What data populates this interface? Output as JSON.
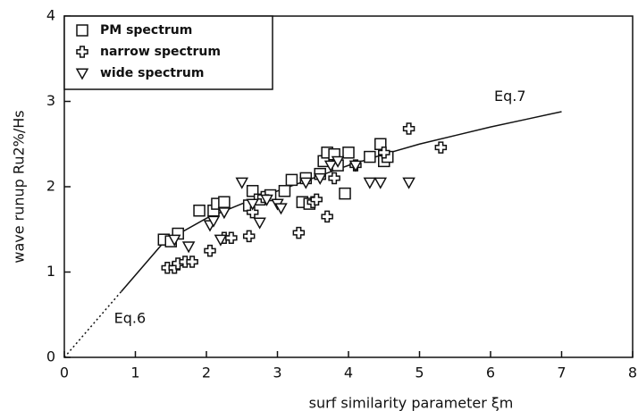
{
  "chart_data": {
    "type": "scatter",
    "xlabel": "surf similarity parameter ξm",
    "ylabel": "wave runup Ru2%/Hs",
    "xlim": [
      0,
      8
    ],
    "ylim": [
      0,
      4
    ],
    "xticks": [
      0,
      1,
      2,
      3,
      4,
      5,
      6,
      7,
      8
    ],
    "yticks": [
      0,
      1,
      2,
      3,
      4
    ],
    "legend": "upper left",
    "color": "#111111",
    "series": [
      {
        "name": "PM spectrum",
        "marker": "square",
        "x": [
          1.4,
          1.5,
          1.6,
          1.9,
          2.1,
          2.15,
          2.25,
          2.6,
          2.65,
          2.75,
          2.9,
          3.1,
          3.2,
          3.35,
          3.4,
          3.45,
          3.6,
          3.65,
          3.7,
          3.8,
          3.85,
          3.95,
          4.0,
          4.3,
          4.45,
          4.5,
          4.55
        ],
        "values": [
          1.38,
          1.36,
          1.45,
          1.72,
          1.72,
          1.8,
          1.82,
          1.78,
          1.95,
          1.85,
          1.9,
          1.95,
          2.08,
          1.82,
          2.1,
          1.8,
          2.15,
          2.3,
          2.4,
          2.38,
          2.25,
          1.92,
          2.4,
          2.35,
          2.5,
          2.3,
          2.35
        ]
      },
      {
        "name": "narrow spectrum",
        "marker": "cross",
        "x": [
          1.45,
          1.55,
          1.6,
          1.7,
          1.8,
          2.05,
          2.25,
          2.35,
          2.6,
          2.65,
          2.8,
          3.3,
          3.5,
          3.55,
          3.7,
          3.8,
          4.1,
          4.5,
          4.85,
          5.3
        ],
        "values": [
          1.05,
          1.05,
          1.1,
          1.12,
          1.12,
          1.25,
          1.4,
          1.4,
          1.42,
          1.7,
          1.88,
          1.46,
          1.82,
          1.85,
          1.65,
          2.1,
          2.25,
          2.4,
          2.68,
          2.46
        ]
      },
      {
        "name": "wide spectrum",
        "marker": "triangle",
        "x": [
          1.55,
          1.75,
          2.05,
          2.1,
          2.2,
          2.25,
          2.5,
          2.65,
          2.75,
          2.85,
          3.0,
          3.05,
          3.4,
          3.6,
          3.75,
          3.85,
          4.1,
          4.3,
          4.45,
          4.85
        ],
        "values": [
          1.38,
          1.3,
          1.55,
          1.6,
          1.38,
          1.7,
          2.05,
          1.8,
          1.58,
          1.85,
          1.8,
          1.75,
          2.05,
          2.1,
          2.25,
          2.3,
          2.25,
          2.05,
          2.05,
          2.05
        ]
      }
    ],
    "lines": [
      {
        "label": "Eq.6",
        "style": "dotted",
        "x": [
          0,
          0.8
        ],
        "values": [
          0,
          0.77
        ]
      },
      {
        "label": "Eq.7",
        "style": "solid",
        "x": [
          0.8,
          1.4,
          2,
          2.5,
          3,
          3.5,
          4,
          4.5,
          5,
          5.5,
          6,
          6.5,
          7
        ],
        "values": [
          0.77,
          1.35,
          1.63,
          1.8,
          1.95,
          2.1,
          2.25,
          2.38,
          2.5,
          2.6,
          2.7,
          2.79,
          2.88
        ]
      }
    ]
  }
}
